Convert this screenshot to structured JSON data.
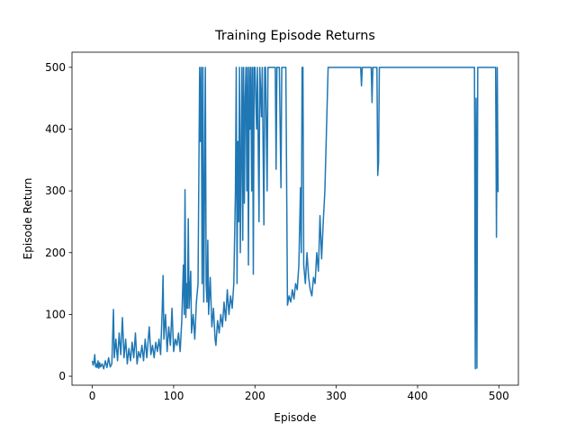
{
  "chart_data": {
    "type": "line",
    "title": "Training Episode Returns",
    "x_label": "Episode",
    "y_label": "Episode Return",
    "color": "#1f77b4",
    "xlim": [
      -25,
      524
    ],
    "ylim": [
      -14.5,
      524.5
    ],
    "xticks": [
      0,
      100,
      200,
      300,
      400,
      500
    ],
    "yticks": [
      0,
      100,
      200,
      300,
      400,
      500
    ],
    "x": [
      0,
      1,
      2,
      3,
      4,
      5,
      6,
      7,
      8,
      9,
      10,
      12,
      14,
      16,
      18,
      20,
      22,
      24,
      26,
      27,
      29,
      31,
      33,
      35,
      37,
      39,
      41,
      43,
      45,
      47,
      49,
      51,
      53,
      55,
      57,
      59,
      61,
      63,
      65,
      67,
      70,
      72,
      74,
      76,
      78,
      80,
      82,
      84,
      86,
      87,
      88,
      90,
      92,
      94,
      96,
      98,
      100,
      102,
      104,
      106,
      108,
      110,
      112,
      113,
      114,
      115,
      116,
      117,
      118,
      119,
      121,
      122,
      124,
      126,
      128,
      130,
      132,
      133,
      134,
      135,
      136,
      137,
      138,
      139,
      140,
      141,
      142,
      143,
      145,
      147,
      149,
      151,
      152,
      154,
      156,
      158,
      160,
      162,
      164,
      166,
      168,
      170,
      172,
      174,
      176,
      177,
      178,
      179,
      180,
      181,
      182,
      183,
      184,
      185,
      186,
      187,
      188,
      189,
      190,
      191,
      192,
      193,
      194,
      195,
      196,
      197,
      198,
      199,
      200,
      202,
      203,
      205,
      206,
      208,
      209,
      211,
      212,
      213,
      215,
      216,
      225,
      226,
      227,
      230,
      232,
      233,
      238,
      240,
      242,
      244,
      246,
      248,
      250,
      252,
      254,
      256,
      257,
      258,
      259,
      260,
      262,
      264,
      266,
      268,
      270,
      272,
      274,
      276,
      278,
      280,
      282,
      284,
      286,
      288,
      290,
      330,
      331,
      332,
      343,
      344,
      345,
      350,
      351,
      352,
      353,
      470,
      471,
      472,
      473,
      474,
      496,
      497,
      498,
      499
    ],
    "values": [
      25,
      18,
      22,
      35,
      15,
      20,
      14,
      25,
      13,
      22,
      15,
      20,
      12,
      25,
      14,
      30,
      15,
      20,
      108,
      30,
      60,
      25,
      70,
      35,
      95,
      30,
      60,
      20,
      45,
      25,
      55,
      30,
      70,
      20,
      40,
      30,
      50,
      25,
      60,
      30,
      80,
      35,
      50,
      30,
      55,
      40,
      60,
      35,
      110,
      163,
      60,
      100,
      40,
      80,
      50,
      110,
      40,
      60,
      50,
      70,
      40,
      90,
      180,
      100,
      302,
      95,
      150,
      110,
      255,
      110,
      170,
      70,
      100,
      60,
      120,
      150,
      500,
      380,
      500,
      150,
      500,
      120,
      300,
      500,
      150,
      120,
      220,
      100,
      160,
      80,
      110,
      60,
      50,
      90,
      70,
      100,
      80,
      120,
      90,
      140,
      100,
      130,
      110,
      150,
      300,
      500,
      150,
      380,
      250,
      500,
      200,
      350,
      500,
      220,
      500,
      280,
      450,
      500,
      300,
      500,
      180,
      500,
      400,
      500,
      300,
      500,
      165,
      500,
      500,
      400,
      500,
      250,
      500,
      420,
      500,
      245,
      500,
      500,
      300,
      500,
      500,
      335,
      500,
      500,
      305,
      500,
      500,
      115,
      130,
      120,
      140,
      125,
      150,
      140,
      180,
      305,
      200,
      500,
      500,
      180,
      150,
      200,
      160,
      140,
      130,
      160,
      150,
      200,
      170,
      260,
      190,
      250,
      300,
      400,
      500,
      500,
      470,
      500,
      500,
      443,
      500,
      500,
      325,
      345,
      500,
      500,
      12,
      450,
      13,
      500,
      500,
      225,
      500,
      298
    ]
  }
}
